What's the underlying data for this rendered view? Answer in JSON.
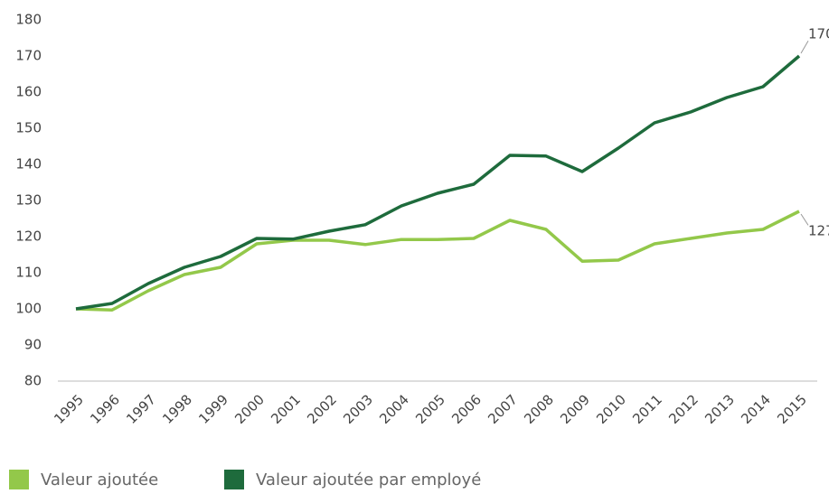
{
  "chart_data": {
    "type": "line",
    "categories": [
      "1995",
      "1996",
      "1997",
      "1998",
      "1999",
      "2000",
      "2001",
      "2002",
      "2003",
      "2004",
      "2005",
      "2006",
      "2007",
      "2008",
      "2009",
      "2010",
      "2011",
      "2012",
      "2013",
      "2014",
      "2015"
    ],
    "series": [
      {
        "name": "Valeur ajoutée",
        "color": "#93c84a",
        "values": [
          100,
          99.7,
          105,
          109.5,
          111.5,
          118,
          119,
          119,
          117.8,
          119.2,
          119.2,
          119.5,
          124.5,
          122,
          113.2,
          113.5,
          118,
          119.5,
          121,
          122,
          127
        ]
      },
      {
        "name": "Valeur ajoutée par employé",
        "color": "#1e6b3c",
        "values": [
          100,
          101.5,
          107,
          111.5,
          114.5,
          119.5,
          119.3,
          121.5,
          123.3,
          128.5,
          132,
          134.5,
          142.5,
          142.3,
          138,
          144.5,
          151.5,
          154.5,
          158.5,
          161.5,
          170
        ]
      }
    ],
    "ylim": [
      80,
      180
    ],
    "yticks": [
      80,
      90,
      100,
      110,
      120,
      130,
      140,
      150,
      160,
      170,
      180
    ],
    "grid": false,
    "legend": "bottom"
  }
}
